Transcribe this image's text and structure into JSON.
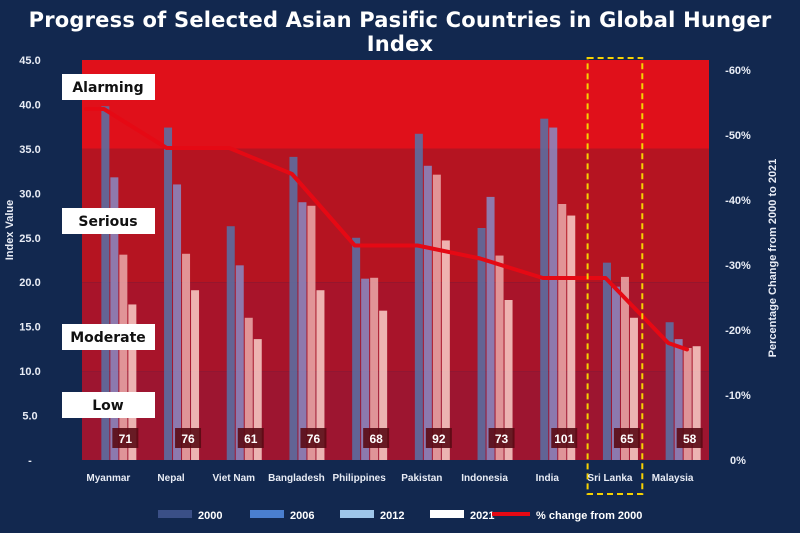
{
  "chart_data": {
    "type": "bar",
    "title": "Progress of Selected Asian Pasific Countries in Global Hunger Index",
    "ylabel": "Index Value",
    "y2label": "Percentage Change from 2000 to 2021",
    "ylim": [
      0,
      45
    ],
    "y2lim": [
      0,
      -60
    ],
    "yticks": [
      "-",
      "5.0",
      "10.0",
      "15.0",
      "20.0",
      "25.0",
      "30.0",
      "35.0",
      "40.0",
      "45.0"
    ],
    "y2ticks": [
      "0%",
      "-10%",
      "-20%",
      "-30%",
      "-40%",
      "-50%",
      "-60%"
    ],
    "categories": [
      "Myanmar",
      "Nepal",
      "Viet Nam",
      "Bangladesh",
      "Philippines",
      "Pakistan",
      "Indonesia",
      "India",
      "Sri Lanka",
      "Malaysia"
    ],
    "series": [
      {
        "name": "2000",
        "color": "#5a6fa3",
        "values": [
          39.8,
          37.4,
          26.3,
          34.1,
          25.0,
          36.7,
          26.1,
          38.4,
          22.2,
          15.5
        ]
      },
      {
        "name": "2006",
        "color": "#8a87bf",
        "values": [
          31.8,
          31.0,
          21.9,
          29.0,
          20.4,
          33.1,
          29.6,
          37.4,
          19.5,
          13.6
        ]
      },
      {
        "name": "2012",
        "color": "#e8a6a6",
        "values": [
          23.1,
          23.2,
          16.0,
          28.6,
          20.5,
          32.1,
          23.0,
          28.8,
          20.6,
          12.6
        ]
      },
      {
        "name": "2021",
        "color": "#f7c9c4",
        "values": [
          17.5,
          19.1,
          13.6,
          19.1,
          16.8,
          24.7,
          18.0,
          27.5,
          16.0,
          12.8
        ]
      }
    ],
    "line_series": {
      "name": "% change from 2000",
      "color": "#e50914",
      "values": [
        -54,
        -48,
        -48,
        -44,
        -33,
        -33,
        -31,
        -28,
        -28,
        -18
      ]
    },
    "ranks": [
      "71",
      "76",
      "61",
      "76",
      "68",
      "92",
      "73",
      "101",
      "65",
      "58"
    ],
    "zones": [
      {
        "label": "Alarming",
        "from": 35,
        "to": 45,
        "color": "#e0101a"
      },
      {
        "label": "Serious",
        "from": 20,
        "to": 35,
        "color": "#b51421"
      },
      {
        "label": "Moderate",
        "from": 10,
        "to": 20,
        "color": "#a8142a"
      },
      {
        "label": "Low",
        "from": 0,
        "to": 10,
        "color": "#9d1530"
      }
    ],
    "highlight": "Sri Lanka",
    "legend": [
      "2000",
      "2006",
      "2012",
      "2021",
      "% change from 2000"
    ],
    "legend_position": "bottom"
  }
}
